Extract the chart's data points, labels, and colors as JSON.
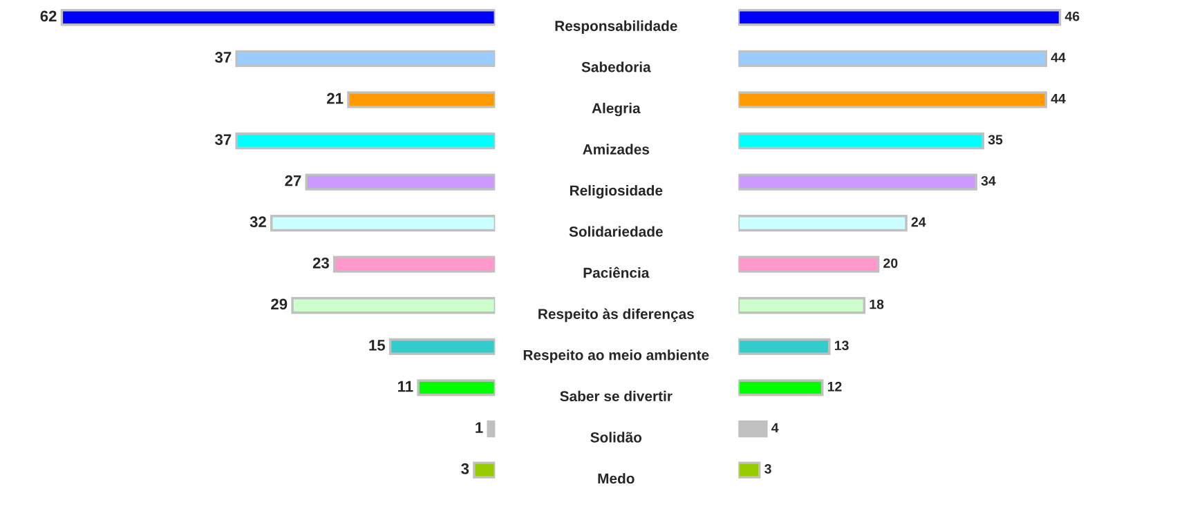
{
  "chart_data": [
    {
      "type": "bar",
      "orientation": "horizontal",
      "tick_labels": "y",
      "data_labels": true,
      "categories": [
        "Responsabilidade",
        "Sabedoria",
        "Alegria",
        "Amizades",
        "Religiosidade",
        "Solidariedade",
        "Paciência",
        "Respeito às diferenças",
        "Respeito ao meio ambiente",
        "Saber se divertir",
        "Solidão",
        "Medo"
      ],
      "values": [
        62,
        37,
        21,
        37,
        27,
        32,
        23,
        29,
        15,
        11,
        1,
        3
      ],
      "colors": [
        "#0000ff",
        "#99ccff",
        "#ff9900",
        "#00ffff",
        "#cc99ff",
        "#ccffff",
        "#ff99cc",
        "#ccffcc",
        "#33cccc",
        "#00ff00",
        "#c0c0c0",
        "#99cc00"
      ]
    },
    {
      "type": "bar",
      "orientation": "horizontal",
      "tick_labels": false,
      "data_labels": true,
      "categories": [
        null,
        null,
        null,
        null,
        null,
        null,
        null,
        null,
        null,
        null,
        null,
        null
      ],
      "values": [
        46,
        44,
        44,
        35,
        34,
        24,
        20,
        18,
        13,
        12,
        4,
        3
      ],
      "colors": [
        "#0000ff",
        "#99ccff",
        "#ff9900",
        "#00ffff",
        "#cc99ff",
        "#ccffff",
        "#ff99cc",
        "#ccffcc",
        "#33cccc",
        "#00ff00",
        "#c0c0c0",
        "#99cc00"
      ]
    }
  ]
}
